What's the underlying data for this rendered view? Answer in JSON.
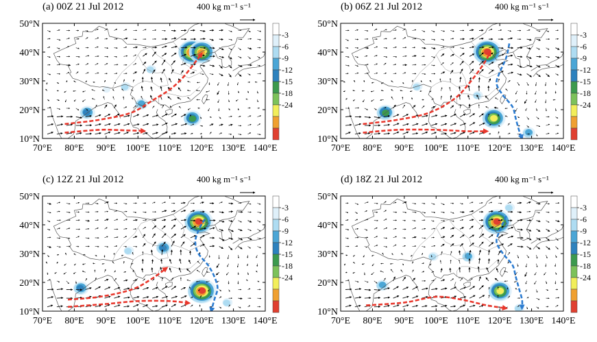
{
  "colorbar": {
    "labels": [
      "3",
      "6",
      "9",
      "12",
      "15",
      "18",
      "24"
    ],
    "colors": [
      "#ffffff",
      "#dff0fa",
      "#aedcf2",
      "#4ba6d6",
      "#2d82be",
      "#3c9a4e",
      "#7cc25a",
      "#f2ee5a",
      "#f0a030",
      "#e04030"
    ]
  },
  "axes": {
    "x_ticks": [
      "70°E",
      "80°E",
      "90°E",
      "100°E",
      "110°E",
      "120°E",
      "130°E",
      "140°E"
    ],
    "y_ticks": [
      "50°N",
      "40°N",
      "30°N",
      "20°N",
      "10°N"
    ],
    "lon_range": [
      70,
      140
    ],
    "lat_range": [
      10,
      50
    ]
  },
  "reference_vector": "400 kg m⁻¹ s⁻¹",
  "panels": [
    {
      "title": "(a) 00Z 21 Jul 2012",
      "red_paths": [
        [
          [
            77,
            15
          ],
          [
            88,
            16.5
          ],
          [
            98,
            19
          ],
          [
            105,
            23.5
          ],
          [
            110,
            27
          ],
          [
            114,
            31
          ],
          [
            118,
            36.5
          ],
          [
            120,
            39.5
          ]
        ],
        [
          [
            77,
            12
          ],
          [
            88,
            13
          ],
          [
            96,
            12.8
          ],
          [
            102,
            12.6
          ]
        ]
      ],
      "blue_path": [],
      "blobs": [
        {
          "lon": 117,
          "lat": 40,
          "level": 9
        },
        {
          "lon": 120,
          "lat": 40,
          "level": 8
        },
        {
          "lon": 84,
          "lat": 19,
          "level": 4
        },
        {
          "lon": 117,
          "lat": 17,
          "level": 5
        },
        {
          "lon": 101,
          "lat": 22,
          "level": 3
        },
        {
          "lon": 96,
          "lat": 28,
          "level": 2
        },
        {
          "lon": 104,
          "lat": 34,
          "level": 2
        },
        {
          "lon": 90,
          "lat": 27,
          "level": 1
        }
      ]
    },
    {
      "title": "(b) 06Z 21 Jul 2012",
      "red_paths": [
        [
          [
            77,
            15
          ],
          [
            88,
            16.5
          ],
          [
            98,
            19
          ],
          [
            106,
            24
          ],
          [
            111,
            30
          ],
          [
            115,
            36
          ],
          [
            117,
            40
          ]
        ],
        [
          [
            77,
            12
          ],
          [
            88,
            13
          ],
          [
            100,
            13
          ],
          [
            110,
            12.5
          ],
          [
            116,
            12.5
          ]
        ]
      ],
      "blue_path": [
        [
          123,
          43
        ],
        [
          122,
          38
        ],
        [
          120,
          33
        ],
        [
          119,
          29
        ],
        [
          121,
          25
        ],
        [
          124,
          21
        ],
        [
          125,
          17
        ],
        [
          126,
          13
        ],
        [
          127,
          10
        ]
      ],
      "blobs": [
        {
          "lon": 116,
          "lat": 40,
          "level": 9
        },
        {
          "lon": 84,
          "lat": 19,
          "level": 5
        },
        {
          "lon": 118,
          "lat": 17,
          "level": 7
        },
        {
          "lon": 129,
          "lat": 12,
          "level": 3
        },
        {
          "lon": 94,
          "lat": 28,
          "level": 2
        },
        {
          "lon": 113,
          "lat": 25,
          "level": 2
        }
      ]
    },
    {
      "title": "(c) 12Z 21 Jul 2012",
      "red_paths": [
        [
          [
            78,
            14
          ],
          [
            88,
            15
          ],
          [
            98,
            17.5
          ],
          [
            104,
            21
          ],
          [
            109,
            25
          ]
        ],
        [
          [
            78,
            11.5
          ],
          [
            90,
            12.5
          ],
          [
            100,
            13.5
          ],
          [
            110,
            13.5
          ],
          [
            116,
            12.8
          ]
        ]
      ],
      "blue_path": [
        [
          121,
          42
        ],
        [
          119,
          38
        ],
        [
          118,
          34
        ],
        [
          119,
          30
        ],
        [
          122,
          26
        ],
        [
          124,
          22
        ],
        [
          125,
          18
        ],
        [
          124,
          14
        ],
        [
          123,
          10
        ]
      ],
      "blobs": [
        {
          "lon": 119,
          "lat": 41,
          "level": 9
        },
        {
          "lon": 82,
          "lat": 18,
          "level": 4
        },
        {
          "lon": 120,
          "lat": 17,
          "level": 9
        },
        {
          "lon": 108,
          "lat": 32,
          "level": 4
        },
        {
          "lon": 97,
          "lat": 31,
          "level": 2
        },
        {
          "lon": 128,
          "lat": 13,
          "level": 2
        }
      ]
    },
    {
      "title": "(d) 18Z 21 Jul 2012",
      "red_paths": [
        [
          [
            78,
            12
          ],
          [
            90,
            13
          ],
          [
            100,
            15
          ],
          [
            108,
            14
          ],
          [
            116,
            12
          ],
          [
            122,
            11
          ]
        ]
      ],
      "blue_path": [
        [
          122,
          43
        ],
        [
          120,
          38
        ],
        [
          119,
          34
        ],
        [
          121,
          30
        ],
        [
          124,
          26
        ],
        [
          125,
          22
        ],
        [
          126,
          18
        ],
        [
          127,
          14
        ],
        [
          127,
          11
        ]
      ],
      "blobs": [
        {
          "lon": 119,
          "lat": 41,
          "level": 9
        },
        {
          "lon": 120,
          "lat": 17,
          "level": 7
        },
        {
          "lon": 83,
          "lat": 19,
          "level": 3
        },
        {
          "lon": 110,
          "lat": 29,
          "level": 3
        },
        {
          "lon": 99,
          "lat": 29,
          "level": 2
        },
        {
          "lon": 126,
          "lat": 11,
          "level": 2
        },
        {
          "lon": 123,
          "lat": 46,
          "level": 2
        }
      ]
    }
  ]
}
